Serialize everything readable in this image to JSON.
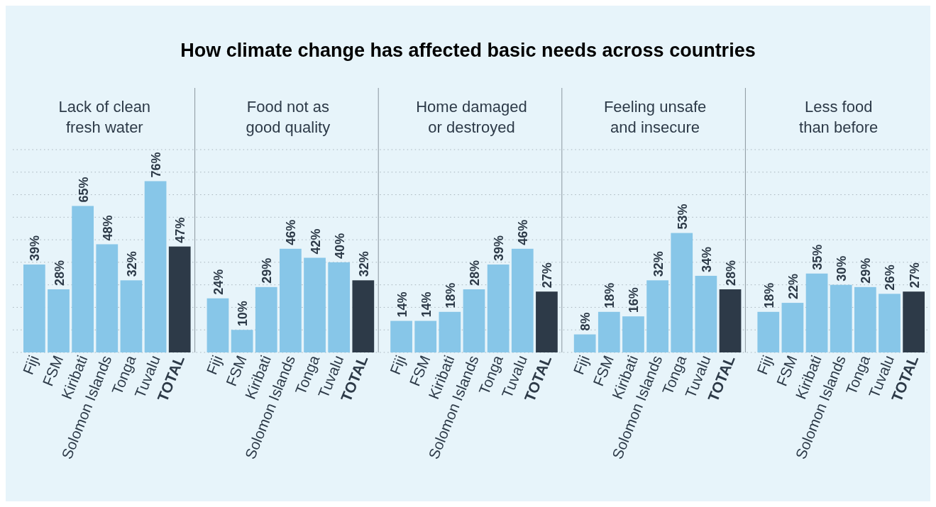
{
  "chart_data": [
    {
      "type": "bar",
      "subtitle": "Lack of clean\nfresh water",
      "categories": [
        "Fiji",
        "FSM",
        "Kiribati",
        "Solomon Islands",
        "Tonga",
        "Tuvalu",
        "TOTAL"
      ],
      "values": [
        39,
        28,
        65,
        48,
        32,
        76,
        47
      ],
      "value_labels": [
        "39%",
        "28%",
        "65%",
        "48%",
        "32%",
        "76%",
        "47%"
      ],
      "colors": [
        "#87c6e8",
        "#87c6e8",
        "#87c6e8",
        "#87c6e8",
        "#87c6e8",
        "#87c6e8",
        "#2d3a48"
      ],
      "ylim": [
        0,
        90
      ],
      "yticks": [
        {
          "value": 0,
          "label": null
        },
        {
          "value": 10,
          "label": null
        },
        {
          "value": 20,
          "label": null
        },
        {
          "value": 30,
          "label": null
        },
        {
          "value": 40,
          "label": null
        },
        {
          "value": 50,
          "label": null
        },
        {
          "value": 60,
          "label": null
        },
        {
          "value": 70,
          "label": null
        },
        {
          "value": 80,
          "label": null
        },
        {
          "value": 90,
          "label": null
        }
      ],
      "grid": "y",
      "tick_labels": "x"
    },
    {
      "type": "bar",
      "subtitle": "Food not as\ngood quality",
      "categories": [
        "Fiji",
        "FSM",
        "Kiribati",
        "Solomon Islands",
        "Tonga",
        "Tuvalu",
        "TOTAL"
      ],
      "values": [
        24,
        10,
        29,
        46,
        42,
        40,
        32
      ],
      "value_labels": [
        "24%",
        "10%",
        "29%",
        "46%",
        "42%",
        "40%",
        "32%"
      ],
      "colors": [
        "#87c6e8",
        "#87c6e8",
        "#87c6e8",
        "#87c6e8",
        "#87c6e8",
        "#87c6e8",
        "#2d3a48"
      ],
      "ylim": [
        0,
        90
      ],
      "yticks": [
        {
          "value": 0,
          "label": null
        },
        {
          "value": 10,
          "label": null
        },
        {
          "value": 20,
          "label": null
        },
        {
          "value": 30,
          "label": null
        },
        {
          "value": 40,
          "label": null
        },
        {
          "value": 50,
          "label": null
        },
        {
          "value": 60,
          "label": null
        },
        {
          "value": 70,
          "label": null
        },
        {
          "value": 80,
          "label": null
        },
        {
          "value": 90,
          "label": null
        }
      ],
      "grid": "y",
      "tick_labels": "x"
    },
    {
      "type": "bar",
      "title": "How climate change has affected basic needs across countries",
      "subtitle": "Home damaged\nor destroyed",
      "categories": [
        "Fiji",
        "FSM",
        "Kiribati",
        "Solomon Islands",
        "Tonga",
        "Tuvalu",
        "TOTAL"
      ],
      "values": [
        14,
        14,
        18,
        28,
        39,
        46,
        27
      ],
      "value_labels": [
        "14%",
        "14%",
        "18%",
        "28%",
        "39%",
        "46%",
        "27%"
      ],
      "colors": [
        "#87c6e8",
        "#87c6e8",
        "#87c6e8",
        "#87c6e8",
        "#87c6e8",
        "#87c6e8",
        "#2d3a48"
      ],
      "ylim": [
        0,
        90
      ],
      "yticks": [
        {
          "value": 0,
          "label": null
        },
        {
          "value": 10,
          "label": null
        },
        {
          "value": 20,
          "label": null
        },
        {
          "value": 30,
          "label": null
        },
        {
          "value": 40,
          "label": null
        },
        {
          "value": 50,
          "label": null
        },
        {
          "value": 60,
          "label": null
        },
        {
          "value": 70,
          "label": null
        },
        {
          "value": 80,
          "label": null
        },
        {
          "value": 90,
          "label": null
        }
      ],
      "grid": "y",
      "tick_labels": "x"
    },
    {
      "type": "bar",
      "subtitle": "Feeling unsafe\nand insecure",
      "categories": [
        "Fiji",
        "FSM",
        "Kiribati",
        "Solomon Islands",
        "Tonga",
        "Tuvalu",
        "TOTAL"
      ],
      "values": [
        8,
        18,
        16,
        32,
        53,
        34,
        28
      ],
      "value_labels": [
        "8%",
        "18%",
        "16%",
        "32%",
        "53%",
        "34%",
        "28%"
      ],
      "colors": [
        "#87c6e8",
        "#87c6e8",
        "#87c6e8",
        "#87c6e8",
        "#87c6e8",
        "#87c6e8",
        "#2d3a48"
      ],
      "ylim": [
        0,
        90
      ],
      "yticks": [
        {
          "value": 0,
          "label": null
        },
        {
          "value": 10,
          "label": null
        },
        {
          "value": 20,
          "label": null
        },
        {
          "value": 30,
          "label": null
        },
        {
          "value": 40,
          "label": null
        },
        {
          "value": 50,
          "label": null
        },
        {
          "value": 60,
          "label": null
        },
        {
          "value": 70,
          "label": null
        },
        {
          "value": 80,
          "label": null
        },
        {
          "value": 90,
          "label": null
        }
      ],
      "grid": "y",
      "tick_labels": "x"
    },
    {
      "type": "bar",
      "subtitle": "Less food\nthan before",
      "categories": [
        "Fiji",
        "FSM",
        "Kiribati",
        "Solomon Islands",
        "Tonga",
        "Tuvalu",
        "TOTAL"
      ],
      "values": [
        18,
        22,
        35,
        30,
        29,
        26,
        27
      ],
      "value_labels": [
        "18%",
        "22%",
        "35%",
        "30%",
        "29%",
        "26%",
        "27%"
      ],
      "colors": [
        "#87c6e8",
        "#87c6e8",
        "#87c6e8",
        "#87c6e8",
        "#87c6e8",
        "#87c6e8",
        "#2d3a48"
      ],
      "ylim": [
        0,
        90
      ],
      "yticks": [
        {
          "value": 0,
          "label": null
        },
        {
          "value": 10,
          "label": null
        },
        {
          "value": 20,
          "label": null
        },
        {
          "value": 30,
          "label": null
        },
        {
          "value": 40,
          "label": null
        },
        {
          "value": 50,
          "label": null
        },
        {
          "value": 60,
          "label": null
        },
        {
          "value": 70,
          "label": null
        },
        {
          "value": 80,
          "label": null
        },
        {
          "value": 90,
          "label": null
        }
      ],
      "grid": "y",
      "tick_labels": "x"
    }
  ]
}
